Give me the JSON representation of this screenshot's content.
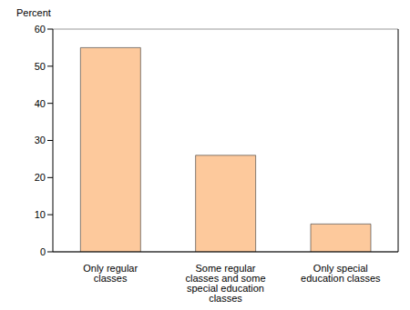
{
  "chart_data": {
    "type": "bar",
    "y_label": "Percent",
    "categories": [
      "Only regular classes",
      "Some regular classes and some special education classes",
      "Only special education classes"
    ],
    "values": [
      55,
      26,
      7.5
    ],
    "color": "#fdc99c",
    "ylim": [
      0,
      60
    ],
    "yticks": [
      0,
      10,
      20,
      30,
      40,
      50,
      60
    ],
    "grid": true
  }
}
